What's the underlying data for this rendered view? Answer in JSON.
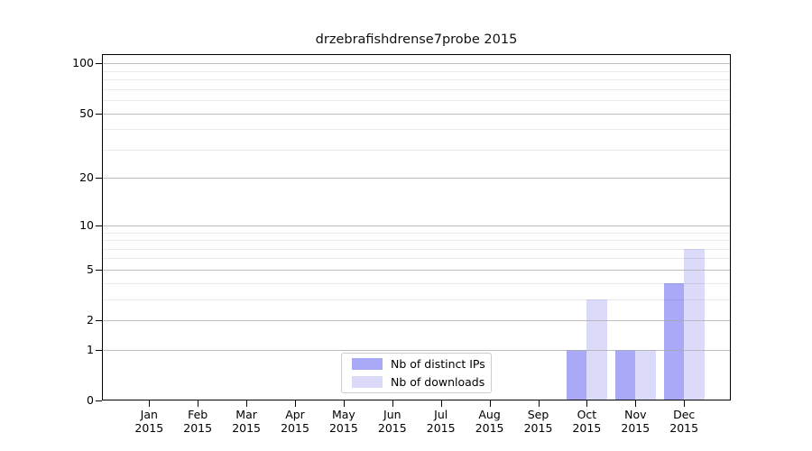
{
  "title": "drzebrafishdrense7probe 2015",
  "chart_data": {
    "type": "bar",
    "title": "drzebrafishdrense7probe 2015",
    "categories": [
      "Jan",
      "Feb",
      "Mar",
      "Apr",
      "May",
      "Jun",
      "Jul",
      "Aug",
      "Sep",
      "Oct",
      "Nov",
      "Dec"
    ],
    "x_year_label": "2015",
    "series": [
      {
        "name": "Nb of distinct IPs",
        "color": "#a9a9f7",
        "values": [
          0,
          0,
          0,
          0,
          0,
          0,
          0,
          0,
          0,
          1,
          1,
          4
        ]
      },
      {
        "name": "Nb of downloads",
        "color": "#dbdbf9",
        "values": [
          0,
          0,
          0,
          0,
          0,
          0,
          0,
          0,
          0,
          3,
          1,
          7
        ]
      }
    ],
    "y_axis": {
      "scale": "log1p",
      "major_ticks": [
        0,
        1,
        2,
        5,
        10,
        20,
        50,
        100
      ],
      "minor_ticks": [
        3,
        4,
        6,
        7,
        8,
        9,
        30,
        40,
        60,
        70,
        80,
        90
      ],
      "ylim": [
        0,
        113
      ]
    },
    "x_axis": {
      "label": "",
      "tick_count": 12
    },
    "legend": {
      "position": "bottom-center"
    },
    "grid": true
  },
  "colors": {
    "ips_bar": "#a9a9f7",
    "downloads_bar": "#dbdbf9",
    "grid_major": "#aaaaaa",
    "grid_minor": "#e9e9e9",
    "spine": "#000000",
    "legend_border": "#cccccc",
    "text": "#000000"
  }
}
